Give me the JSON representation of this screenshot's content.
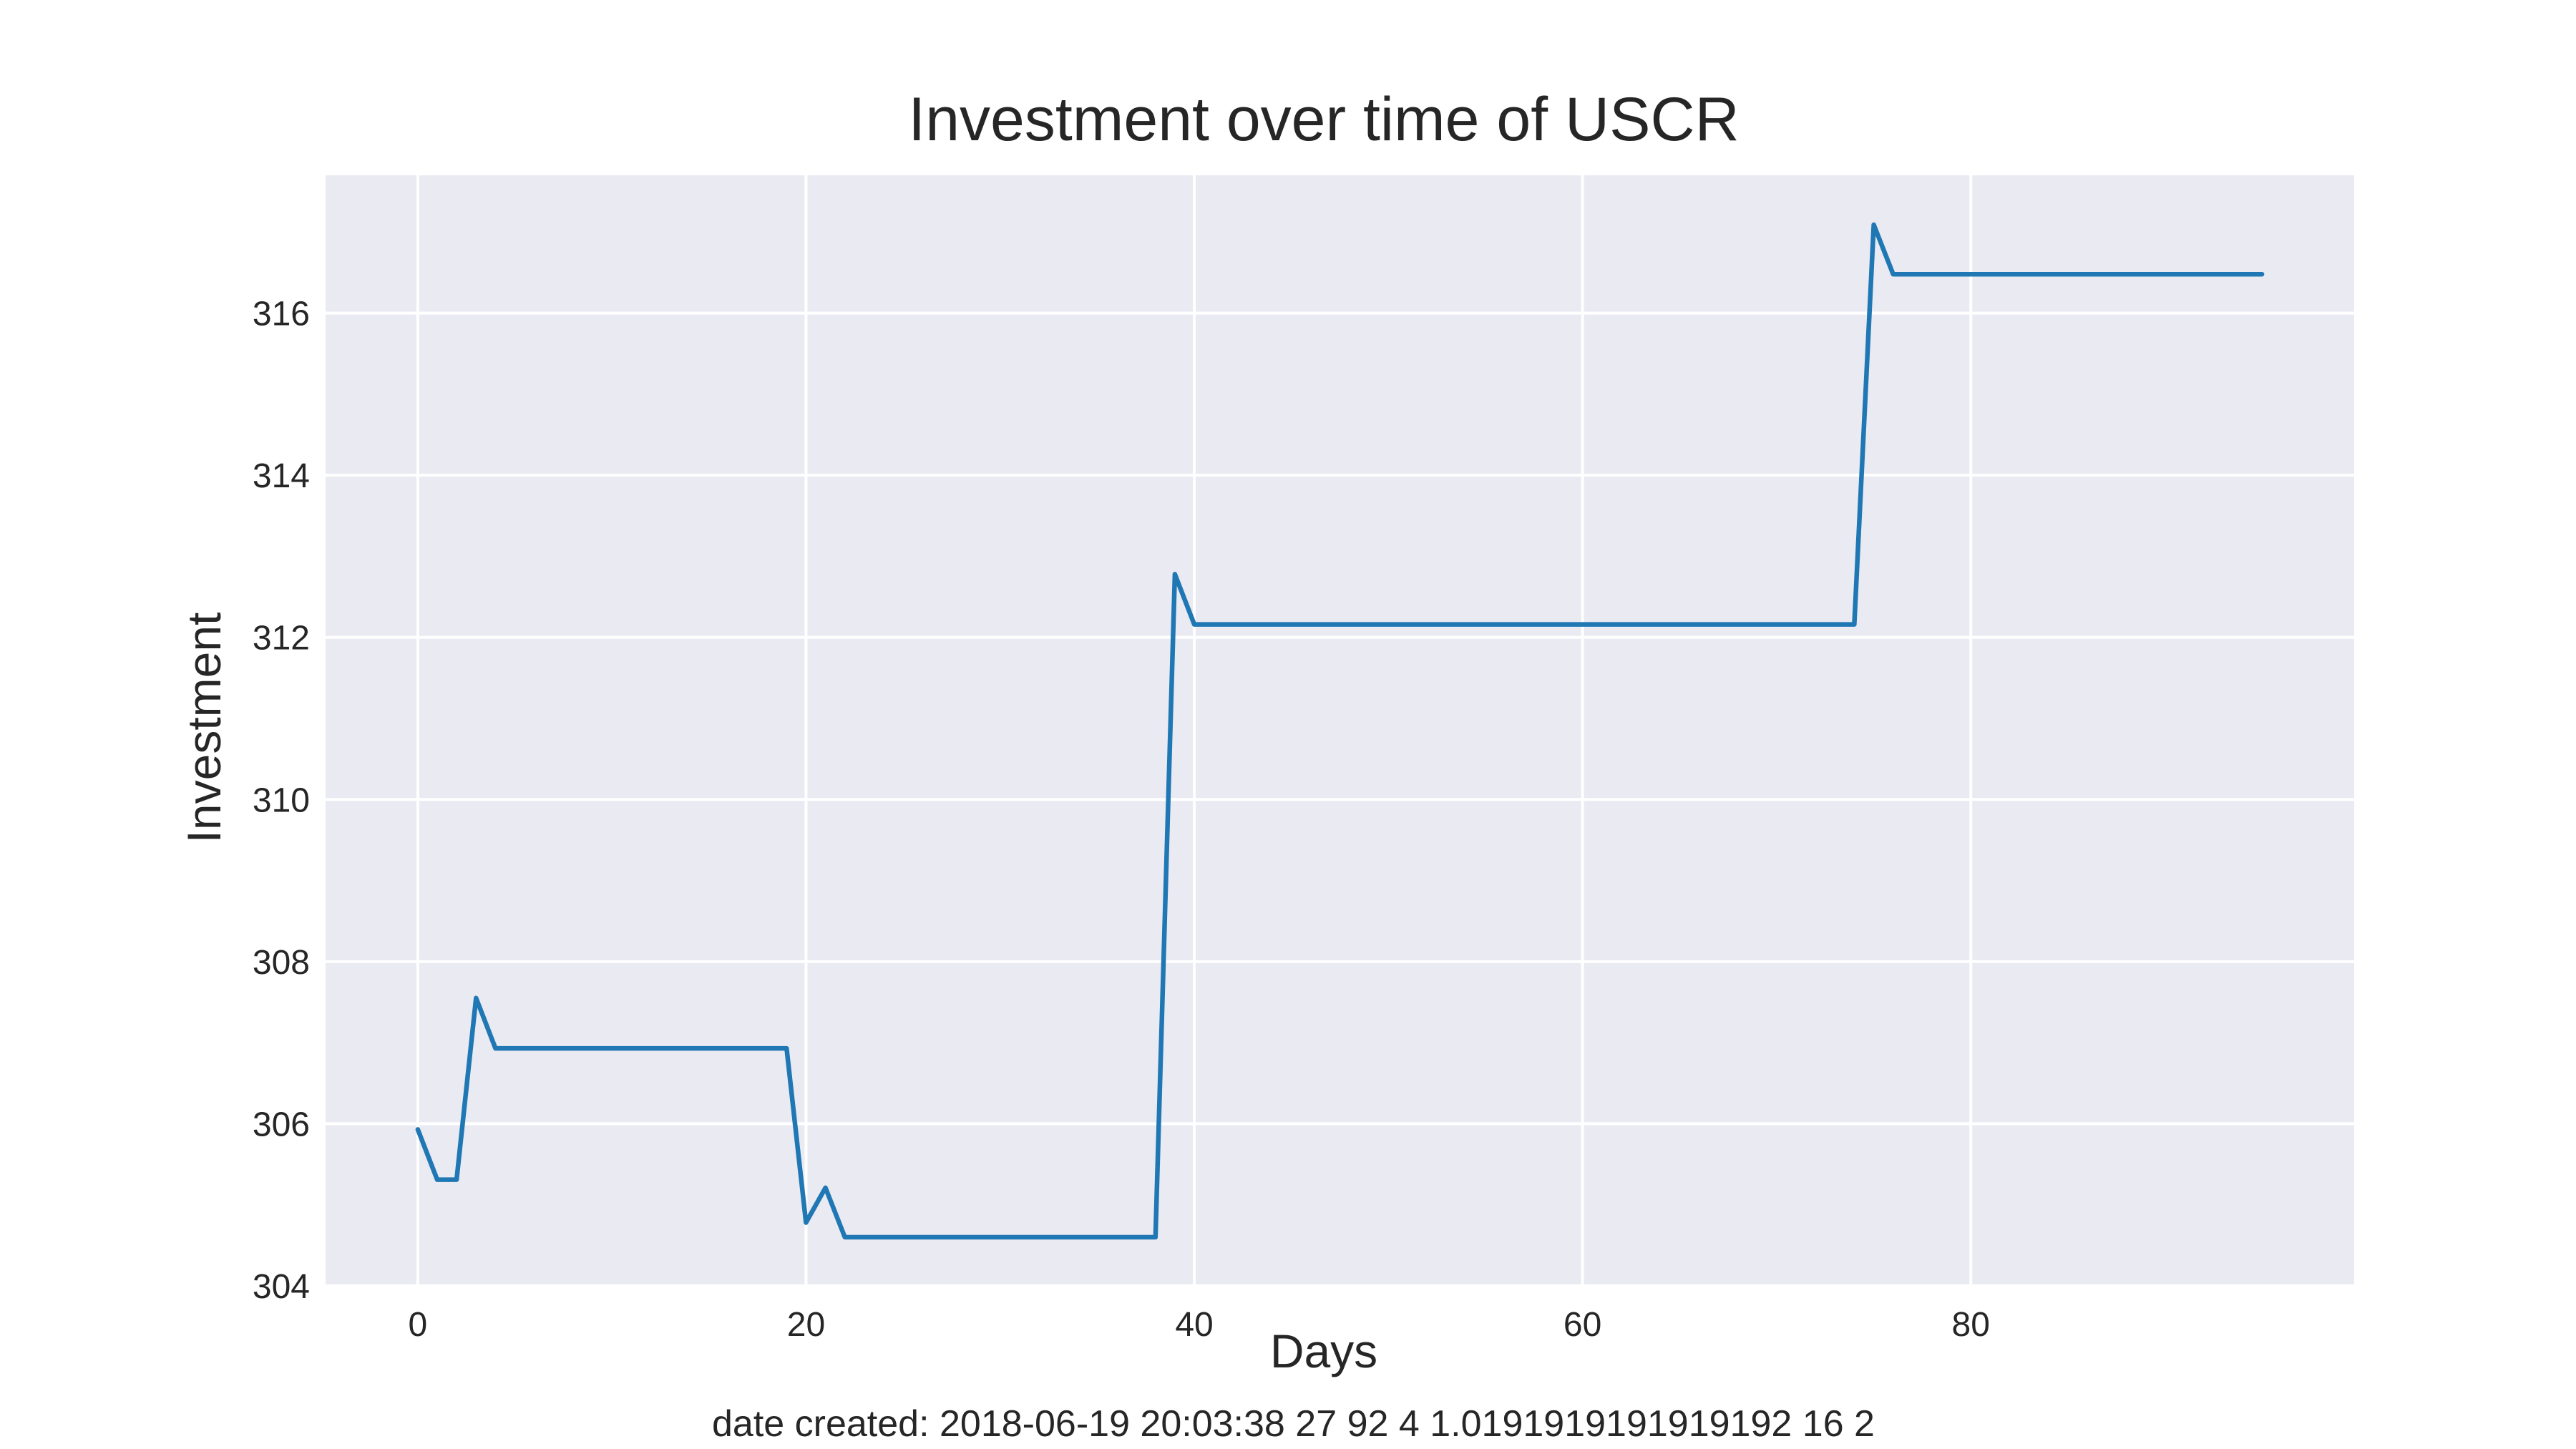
{
  "chart_data": {
    "type": "line",
    "title": "Investment over time of USCR",
    "xlabel": "Days",
    "ylabel": "Investment",
    "xlim": [
      -4.75,
      99.75
    ],
    "ylim": [
      304,
      317.7
    ],
    "xticks": [
      0,
      20,
      40,
      60,
      80
    ],
    "yticks": [
      304,
      306,
      308,
      310,
      312,
      314,
      316
    ],
    "grid": true,
    "background": "#eaeaf2",
    "series": [
      {
        "color": "#1f77b4",
        "points": [
          [
            0,
            305.93
          ],
          [
            1,
            305.31
          ],
          [
            2,
            305.31
          ],
          [
            3,
            307.55
          ],
          [
            4,
            306.93
          ],
          [
            19,
            306.93
          ],
          [
            20,
            304.78
          ],
          [
            21,
            305.21
          ],
          [
            22,
            304.6
          ],
          [
            38,
            304.6
          ],
          [
            39,
            312.78
          ],
          [
            40,
            312.16
          ],
          [
            74,
            312.16
          ],
          [
            75,
            317.09
          ],
          [
            76,
            316.48
          ],
          [
            95,
            316.48
          ]
        ]
      }
    ]
  },
  "caption": "date created: 2018-06-19 20:03:38 27 92 4 1.0191919191919192 16 2"
}
